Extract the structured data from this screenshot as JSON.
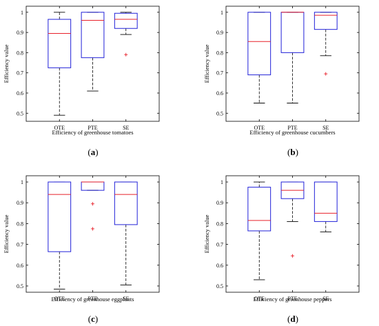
{
  "figure": {
    "captions": [
      "(",
      "a",
      ")",
      "(",
      "b",
      ")",
      "(",
      "c",
      ")",
      "(",
      "d",
      ")"
    ]
  },
  "colors": {
    "box": "#2020d8",
    "median": "#e8202a",
    "outlier": "#e8202a",
    "whisker": "#000000",
    "frame": "#000000"
  },
  "chart_data": [
    {
      "type": "box",
      "caption_letter": "a",
      "xlabel": "Efficiency of greenhouse tomatoes",
      "ylabel": "Efficiency value",
      "categories": [
        "OTE",
        "PTE",
        "SE"
      ],
      "ylim": [
        0.46,
        1.03
      ],
      "yticks": [
        0.5,
        0.6,
        0.7,
        0.8,
        0.9,
        1
      ],
      "ytick_labels": [
        "0.5",
        "0.6",
        "0.7",
        "0.8",
        "0.9",
        "1"
      ],
      "boxes": [
        {
          "min": 0.49,
          "q1": 0.725,
          "median": 0.895,
          "q3": 0.965,
          "max": 1.0,
          "outliers": []
        },
        {
          "min": 0.61,
          "q1": 0.775,
          "median": 0.96,
          "q3": 1.0,
          "max": 1.0,
          "outliers": []
        },
        {
          "min": 0.89,
          "q1": 0.92,
          "median": 0.965,
          "q3": 0.995,
          "max": 1.0,
          "outliers": [
            0.79
          ]
        }
      ]
    },
    {
      "type": "box",
      "caption_letter": "b",
      "xlabel": "Efficiency of greenhouse cucumbers",
      "ylabel": "Efficiency value",
      "categories": [
        "OTE",
        "PTE",
        "SE"
      ],
      "ylim": [
        0.46,
        1.03
      ],
      "yticks": [
        0.5,
        0.6,
        0.7,
        0.8,
        0.9,
        1
      ],
      "ytick_labels": [
        "0.5",
        "0.6",
        "0.7",
        "0.8",
        "0.9",
        "1"
      ],
      "boxes": [
        {
          "min": 0.55,
          "q1": 0.69,
          "median": 0.855,
          "q3": 1.0,
          "max": 1.0,
          "outliers": []
        },
        {
          "min": 0.55,
          "q1": 0.8,
          "median": 1.0,
          "q3": 1.0,
          "max": 1.0,
          "outliers": []
        },
        {
          "min": 0.785,
          "q1": 0.915,
          "median": 0.985,
          "q3": 1.0,
          "max": 1.0,
          "outliers": [
            0.695
          ]
        }
      ]
    },
    {
      "type": "box",
      "caption_letter": "c",
      "xlabel": "Efficiency of greenhouse eggplants",
      "ylabel": "Efficiency value",
      "categories": [
        "OTE",
        "PTE",
        "SE"
      ],
      "ylim": [
        0.47,
        1.03
      ],
      "yticks": [
        0.5,
        0.6,
        0.7,
        0.8,
        0.9,
        1
      ],
      "ytick_labels": [
        "0.5",
        "0.6",
        "0.7",
        "0.8",
        "0.9",
        "1"
      ],
      "boxes": [
        {
          "min": 0.485,
          "q1": 0.665,
          "median": 0.94,
          "q3": 1.0,
          "max": 1.0,
          "outliers": []
        },
        {
          "min": 0.96,
          "q1": 0.96,
          "median": 1.0,
          "q3": 1.0,
          "max": 1.0,
          "outliers": [
            0.895,
            0.775
          ]
        },
        {
          "min": 0.505,
          "q1": 0.795,
          "median": 0.94,
          "q3": 1.0,
          "max": 1.0,
          "outliers": []
        }
      ]
    },
    {
      "type": "box",
      "caption_letter": "d",
      "xlabel": "Efficiency of greenhouse peppers",
      "ylabel": "Efficiency value",
      "categories": [
        "OTE",
        "PTE",
        "SE"
      ],
      "ylim": [
        0.47,
        1.03
      ],
      "yticks": [
        0.5,
        0.6,
        0.7,
        0.8,
        0.9,
        1
      ],
      "ytick_labels": [
        "0.5",
        "0.6",
        "0.7",
        "0.8",
        "0.9",
        "1"
      ],
      "boxes": [
        {
          "min": 0.53,
          "q1": 0.765,
          "median": 0.815,
          "q3": 0.975,
          "max": 1.0,
          "outliers": []
        },
        {
          "min": 0.81,
          "q1": 0.92,
          "median": 0.96,
          "q3": 1.0,
          "max": 1.0,
          "outliers": [
            0.645
          ]
        },
        {
          "min": 0.76,
          "q1": 0.81,
          "median": 0.85,
          "q3": 1.0,
          "max": 1.0,
          "outliers": []
        }
      ]
    }
  ]
}
